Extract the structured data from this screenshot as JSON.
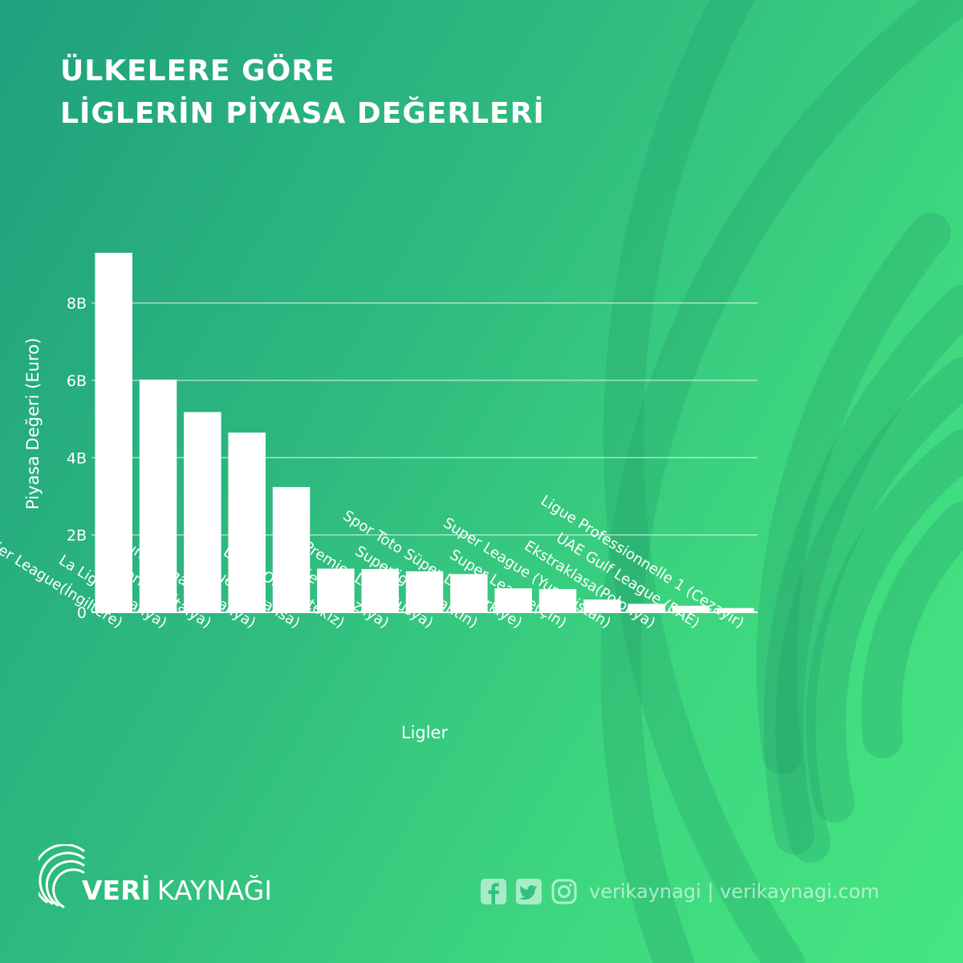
{
  "title": {
    "line1": "ÜLKELERE GÖRE",
    "line2": "LİGLERİN PİYASA DEĞERLERİ"
  },
  "chart_data": {
    "type": "bar",
    "categories": [
      "Premier League(İngiltere)",
      "La Liga (İspanya)",
      "Serie A (İtalya)",
      "Bundesliga (Almanya)",
      "Ligue 1 (Fransa)",
      "Liga NOS (Portekiz)",
      "Serie A(Brezilya)",
      "Premier Liga (Rusya)",
      "Superliga (Arjantin)",
      "Spor Toto Süper Lig (Türkiye)",
      "Super League(Çin)",
      "Super League (Yunanistan)",
      "Ekstraklasa(Polonya)",
      "UAE Gulf League (BAE)",
      "Ligue Professionnelle 1 (Cezayir)"
    ],
    "values": [
      9.3,
      6.02,
      5.18,
      4.65,
      3.24,
      1.13,
      1.12,
      1.06,
      0.99,
      0.62,
      0.6,
      0.33,
      0.22,
      0.17,
      0.11
    ],
    "unit_multiplier": 1000000000,
    "yticks": [
      0,
      2,
      4,
      6,
      8
    ],
    "ytick_labels": [
      "0",
      "2B",
      "4B",
      "6B",
      "8B"
    ],
    "ylim": [
      0,
      9.3
    ],
    "xlabel": "Ligler",
    "ylabel": "Piyasa Değeri (Euro)",
    "grid": true,
    "colors": {
      "bar": "#ffffff",
      "grid": "#ffffff",
      "text": "#ffffff"
    }
  },
  "footer": {
    "brand_bold": "VERİ",
    "brand_light": "KAYNAĞI",
    "social_handle": "verikaynagi | verikaynagi.com",
    "icons": [
      "facebook-icon",
      "twitter-icon",
      "instagram-icon"
    ]
  }
}
